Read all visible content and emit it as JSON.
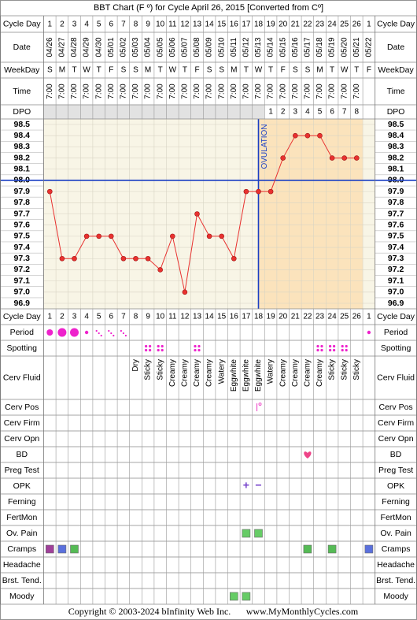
{
  "title": "BBT Chart (F º) for Cycle April 26, 2015  [Converted from Cº]",
  "cycle_day_label": "Cycle Day",
  "cycle_days": [
    1,
    2,
    3,
    4,
    5,
    6,
    7,
    8,
    9,
    10,
    11,
    12,
    13,
    14,
    15,
    16,
    17,
    18,
    19,
    20,
    21,
    22,
    23,
    24,
    25,
    26,
    1
  ],
  "date_label": "Date",
  "dates": [
    "04/26",
    "04/27",
    "04/28",
    "04/29",
    "04/30",
    "05/01",
    "05/02",
    "05/03",
    "05/04",
    "05/05",
    "05/06",
    "05/07",
    "05/08",
    "05/09",
    "05/10",
    "05/11",
    "05/12",
    "05/13",
    "05/14",
    "05/15",
    "05/16",
    "05/17",
    "05/18",
    "05/19",
    "05/20",
    "05/21",
    "05/22"
  ],
  "weekday_label": "WeekDay",
  "weekdays": [
    "S",
    "M",
    "T",
    "W",
    "T",
    "F",
    "S",
    "S",
    "M",
    "T",
    "W",
    "T",
    "F",
    "S",
    "S",
    "M",
    "T",
    "W",
    "T",
    "F",
    "S",
    "S",
    "M",
    "T",
    "W",
    "T",
    "F"
  ],
  "time_label": "Time",
  "times": [
    "7:00",
    "7:00",
    "7:00",
    "7:00",
    "7:00",
    "7:00",
    "7:00",
    "7:00",
    "7:00",
    "7:00",
    "7:00",
    "7:00",
    "7:00",
    "7:00",
    "7:00",
    "7:00",
    "7:00",
    "7:00",
    "7:00",
    "7:00",
    "7:00",
    "7:00",
    "7:00",
    "7:00",
    "7:00",
    "7:00",
    null
  ],
  "dpo_label": "DPO",
  "dpo": [
    null,
    null,
    null,
    null,
    null,
    null,
    null,
    null,
    null,
    null,
    null,
    null,
    null,
    null,
    null,
    null,
    null,
    null,
    1,
    2,
    3,
    4,
    5,
    6,
    7,
    8,
    null
  ],
  "chart_data": {
    "type": "line",
    "values": [
      97.9,
      97.3,
      97.3,
      97.5,
      97.5,
      97.5,
      97.3,
      97.3,
      97.3,
      97.2,
      97.5,
      97.0,
      97.7,
      97.5,
      97.5,
      97.3,
      97.9,
      97.9,
      97.9,
      98.2,
      98.4,
      98.4,
      98.4,
      98.2,
      98.2,
      98.2,
      null
    ],
    "color": "#e8312f",
    "ylim": [
      96.9,
      98.5
    ],
    "yticks": [
      98.5,
      98.4,
      98.3,
      98.2,
      98.1,
      {
        "value": 98,
        "label": "98.0"
      },
      97.9,
      97.8,
      97.7,
      97.6,
      97.5,
      97.4,
      97.3,
      97.2,
      97.1,
      {
        "value": 97,
        "label": "97.0"
      },
      96.9
    ],
    "grid": true,
    "coverline": 98.0,
    "coverline_color": "#1a3fc4",
    "ovulation_day": 18,
    "ovulation_label": "OVULATION"
  },
  "period": {
    "label": "Period",
    "color": "#ee22cc",
    "values": [
      3,
      4,
      4,
      2,
      1,
      1,
      1,
      null,
      null,
      null,
      null,
      null,
      null,
      null,
      null,
      null,
      null,
      null,
      null,
      null,
      null,
      null,
      null,
      null,
      null,
      null,
      2
    ]
  },
  "spotting": {
    "label": "Spotting",
    "color": "#ee22cc",
    "values": [
      null,
      null,
      null,
      null,
      null,
      null,
      null,
      null,
      1,
      1,
      null,
      null,
      1,
      null,
      null,
      null,
      null,
      null,
      null,
      null,
      null,
      null,
      1,
      1,
      1,
      null,
      null
    ]
  },
  "cervical_fluid": {
    "label": "Cerv Fluid",
    "values": [
      null,
      null,
      null,
      null,
      null,
      null,
      null,
      "Dry",
      "Sticky",
      "Sticky",
      "Creamy",
      "Creamy",
      "Creamy",
      "Creamy",
      "Watery",
      "Eggwhite",
      "Eggwhite",
      "Eggwhite",
      "Watery",
      "Creamy",
      "Creamy",
      "Creamy",
      "Creamy",
      "Sticky",
      "Sticky",
      "Sticky",
      null
    ]
  },
  "cervical_position": {
    "label": "Cerv Pos",
    "color": "#ee55cc",
    "values": [
      null,
      null,
      null,
      null,
      null,
      null,
      null,
      null,
      null,
      null,
      null,
      null,
      null,
      null,
      null,
      null,
      null,
      1,
      null,
      null,
      null,
      null,
      null,
      null,
      null,
      null,
      null
    ]
  },
  "cervical_firmness": {
    "label": "Cerv Firm"
  },
  "cervical_opening": {
    "label": "Cerv Opn"
  },
  "bd": {
    "label": "BD",
    "color": "#ee4488",
    "values": [
      null,
      null,
      null,
      null,
      null,
      null,
      null,
      null,
      null,
      null,
      null,
      null,
      null,
      null,
      null,
      null,
      null,
      null,
      null,
      null,
      null,
      1,
      null,
      null,
      null,
      null,
      null
    ]
  },
  "preg_test": {
    "label": "Preg Test"
  },
  "opk": {
    "label": "OPK",
    "color": "#7744cc",
    "values": [
      null,
      null,
      null,
      null,
      null,
      null,
      null,
      null,
      null,
      null,
      null,
      null,
      null,
      null,
      null,
      null,
      "+",
      "−",
      null,
      null,
      null,
      null,
      null,
      null,
      null,
      null,
      null
    ]
  },
  "ferning": {
    "label": "Ferning"
  },
  "fertmon": {
    "label": "FertMon"
  },
  "ov_pain": {
    "label": "Ov. Pain",
    "values": [
      null,
      null,
      null,
      null,
      null,
      null,
      null,
      null,
      null,
      null,
      null,
      null,
      null,
      null,
      null,
      null,
      "#66cc66",
      "#66cc66",
      null,
      null,
      null,
      null,
      null,
      null,
      null,
      null,
      null
    ]
  },
  "cramps": {
    "label": "Cramps",
    "values": [
      "#a0409a",
      "#5a70dd",
      "#55bb55",
      null,
      null,
      null,
      null,
      null,
      null,
      null,
      null,
      null,
      null,
      null,
      null,
      null,
      null,
      null,
      null,
      null,
      null,
      "#55bb55",
      null,
      "#55bb55",
      null,
      null,
      "#5a70dd"
    ]
  },
  "headache": {
    "label": "Headache"
  },
  "breast_tenderness": {
    "label": "Brst. Tend."
  },
  "moody": {
    "label": "Moody",
    "values": [
      null,
      null,
      null,
      null,
      null,
      null,
      null,
      null,
      null,
      null,
      null,
      null,
      null,
      null,
      null,
      "#66cc66",
      "#66cc66",
      null,
      null,
      null,
      null,
      null,
      null,
      null,
      null,
      null,
      null
    ]
  },
  "copyright": "Copyright © 2003-2024 bInfinity Web Inc.",
  "site": "www.MyMonthlyCycles.com"
}
